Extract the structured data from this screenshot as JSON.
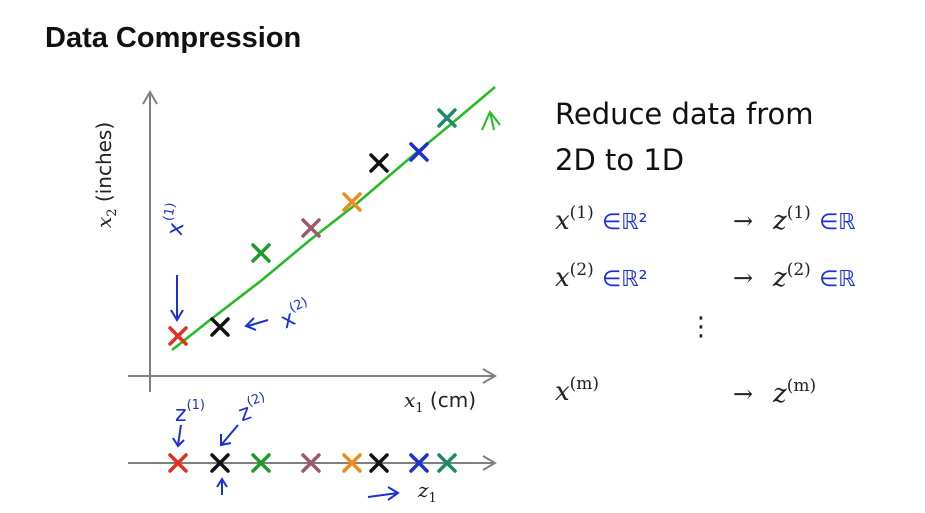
{
  "title": "Data Compression",
  "right_heading": {
    "line1": "Reduce data from",
    "line2": "2D to 1D"
  },
  "plot": {
    "ylabel_var": "x",
    "ylabel_sub": "2",
    "ylabel_unit": "(inches)",
    "xlabel_var": "x",
    "xlabel_sub": "1",
    "xlabel_unit": "(cm)",
    "line_color": "#22bb22",
    "axis_color": "#808080",
    "point_colors": [
      "#e0301e",
      "#111111",
      "#1e9a2a",
      "#9a5a6e",
      "#f08a1e",
      "#111111",
      "#1e2fd0",
      "#1a8a6a"
    ],
    "annotations": {
      "x1": "x",
      "x1_sup": "(1)",
      "x2": "x",
      "x2_sup": "(2)",
      "z1": "z",
      "z1_sup": "(1)",
      "z2": "z",
      "z2_sup": "(2)"
    }
  },
  "projection": {
    "axis_var": "z",
    "axis_sub": "1"
  },
  "mapping": [
    {
      "x": "x",
      "x_sup": "(1)",
      "x_space": "∈ℝ²",
      "arrow": "→",
      "z": "z",
      "z_sup": "(1)",
      "z_space": "∈ℝ"
    },
    {
      "x": "x",
      "x_sup": "(2)",
      "x_space": "∈ℝ²",
      "arrow": "→",
      "z": "z",
      "z_sup": "(2)",
      "z_space": "∈ℝ"
    },
    {
      "x": "x",
      "x_sup": "(m)",
      "x_space": "",
      "arrow": "→",
      "z": "z",
      "z_sup": "(m)",
      "z_space": ""
    }
  ],
  "ellipsis": "⋮",
  "accent_hand": "#1a2fd6"
}
